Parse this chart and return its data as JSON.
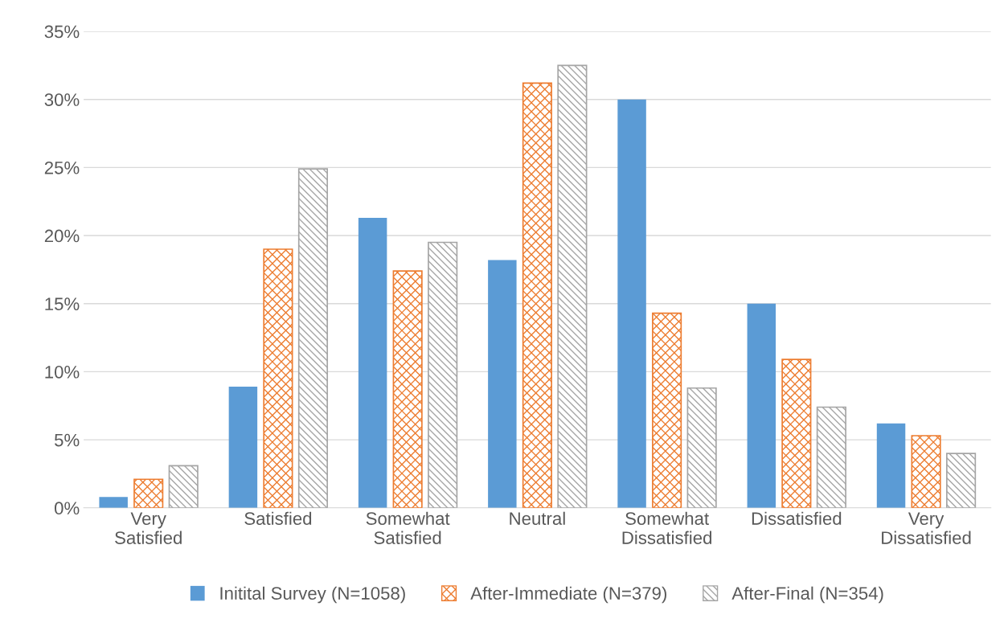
{
  "chart_data": {
    "type": "bar",
    "categories": [
      "Very\nSatisfied",
      "Satisfied",
      "Somewhat\nSatisfied",
      "Neutral",
      "Somewhat\nDissatisfied",
      "Dissatisfied",
      "Very\nDissatisfied"
    ],
    "series": [
      {
        "name": "Initital Survey (N=1058)",
        "color": "#5b9bd5",
        "values": [
          0.8,
          8.9,
          21.3,
          18.2,
          30.0,
          15.0,
          6.2
        ]
      },
      {
        "name": "After-Immediate (N=379)",
        "color": "#ed7d31",
        "values": [
          2.1,
          19.0,
          17.4,
          31.2,
          14.3,
          10.9,
          5.3
        ]
      },
      {
        "name": "After-Final (N=354)",
        "color": "#a5a5a5",
        "values": [
          3.1,
          24.9,
          19.5,
          32.5,
          8.8,
          7.4,
          4.0
        ]
      }
    ],
    "ylim": [
      0,
      35
    ],
    "yticks": [
      {
        "value": 0,
        "label": "0%"
      },
      {
        "value": 5,
        "label": "5%"
      },
      {
        "value": 10,
        "label": "10%"
      },
      {
        "value": 15,
        "label": "15%"
      },
      {
        "value": 20,
        "label": "20%"
      },
      {
        "value": 25,
        "label": "25%"
      },
      {
        "value": 30,
        "label": "30%"
      },
      {
        "value": 35,
        "label": "35%"
      }
    ],
    "grid": "y",
    "legend": "bottom"
  }
}
